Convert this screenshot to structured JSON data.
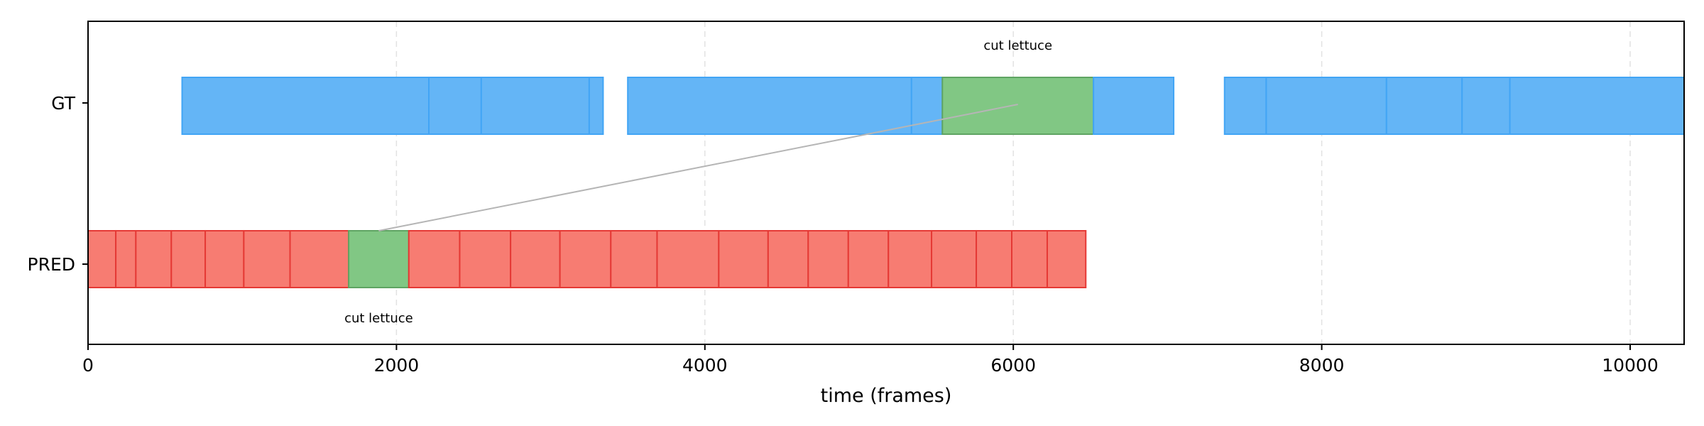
{
  "chart_data": {
    "type": "timeline",
    "xlabel": "time (frames)",
    "xlim": [
      0,
      10350
    ],
    "x_ticks": [
      0,
      2000,
      4000,
      6000,
      8000,
      10000
    ],
    "rows": [
      "GT",
      "PRED"
    ],
    "grid": "vertical dashed",
    "colors": {
      "gt_fill": "#64b5f6",
      "gt_edge": "#42a5f5",
      "pred_fill": "#f77c72",
      "pred_edge": "#e53935",
      "highlight_fill": "#81c784",
      "highlight_edge": "#5fa463",
      "connector": "#b5b5b5"
    },
    "series": [
      {
        "row": "GT",
        "segments": [
          [
            610,
            2210
          ],
          [
            2210,
            2550
          ],
          [
            2550,
            3250
          ],
          [
            3250,
            3340
          ],
          [
            3500,
            5340
          ],
          [
            5340,
            5540
          ],
          [
            5540,
            6520
          ],
          [
            6520,
            7040
          ],
          [
            7370,
            7640
          ],
          [
            7640,
            8420
          ],
          [
            8420,
            8910
          ],
          [
            8910,
            9220
          ],
          [
            9220,
            10350
          ]
        ],
        "highlight_index": 6
      },
      {
        "row": "PRED",
        "segments": [
          [
            0,
            180
          ],
          [
            180,
            310
          ],
          [
            310,
            540
          ],
          [
            540,
            760
          ],
          [
            760,
            1010
          ],
          [
            1010,
            1310
          ],
          [
            1310,
            1690
          ],
          [
            1690,
            2080
          ],
          [
            2080,
            2410
          ],
          [
            2410,
            2740
          ],
          [
            2740,
            3060
          ],
          [
            3060,
            3390
          ],
          [
            3390,
            3690
          ],
          [
            3690,
            4090
          ],
          [
            4090,
            4410
          ],
          [
            4410,
            4670
          ],
          [
            4670,
            4930
          ],
          [
            4930,
            5190
          ],
          [
            5190,
            5470
          ],
          [
            5470,
            5760
          ],
          [
            5760,
            5990
          ],
          [
            5990,
            6220
          ],
          [
            6220,
            6470
          ]
        ],
        "highlight_index": 7
      }
    ],
    "annotations": [
      {
        "row": "GT",
        "text": "cut lettuce",
        "x": 6030
      },
      {
        "row": "PRED",
        "text": "cut lettuce",
        "x": 1885
      }
    ],
    "connector": {
      "from": {
        "row": "PRED",
        "x": 1885
      },
      "to": {
        "row": "GT",
        "x": 6030
      }
    }
  }
}
